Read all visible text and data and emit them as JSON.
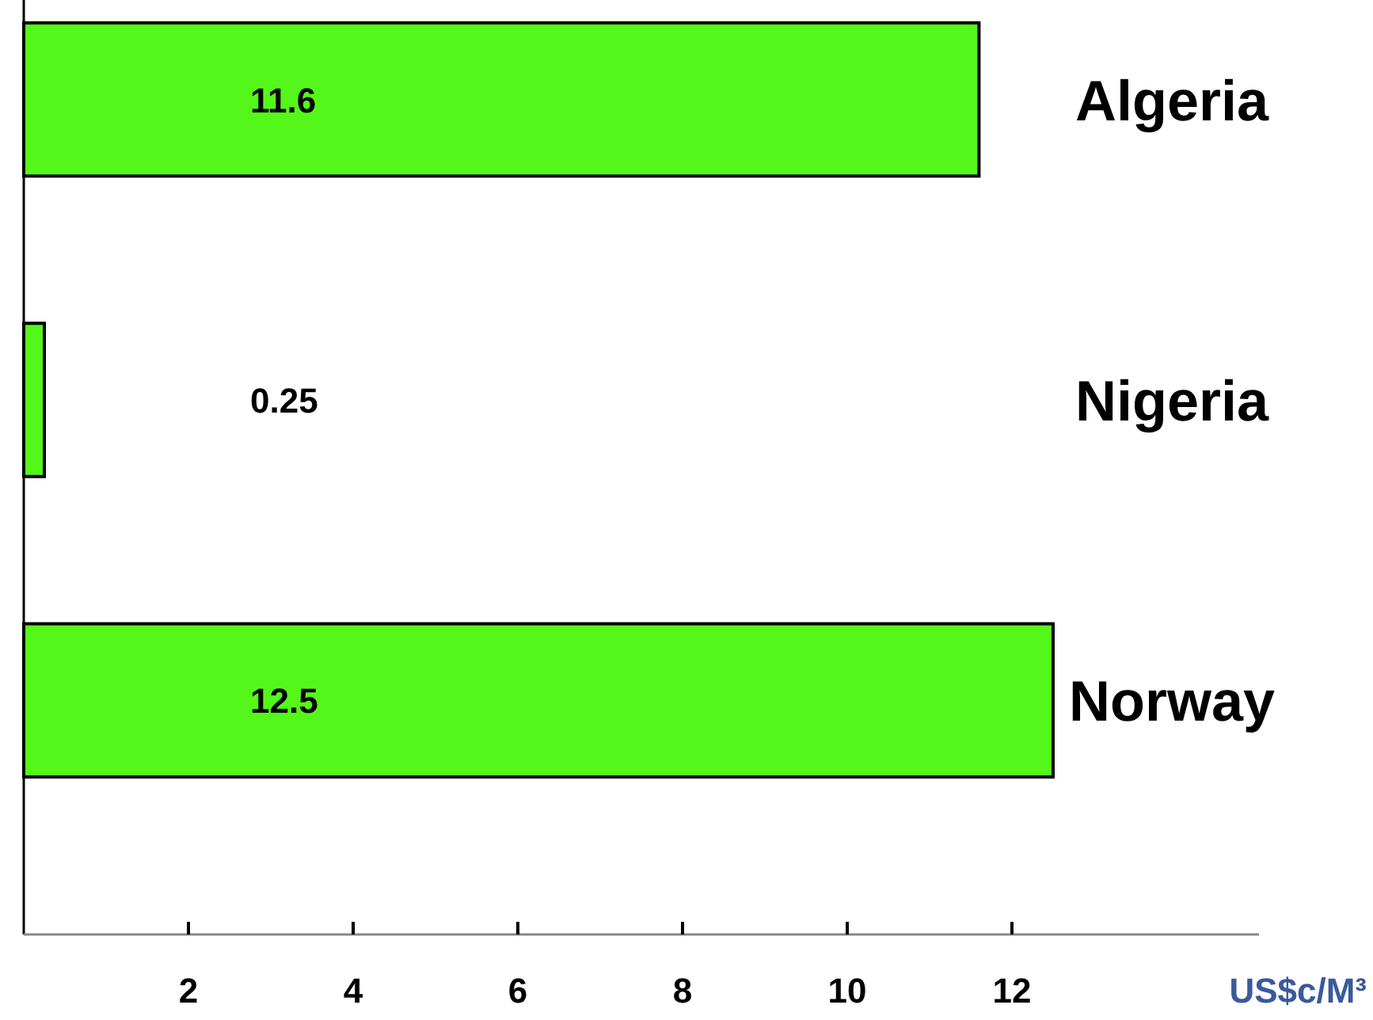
{
  "chart_data": {
    "type": "bar",
    "orientation": "horizontal",
    "categories": [
      "Algeria",
      "Nigeria",
      "Norway"
    ],
    "values": [
      11.6,
      0.25,
      12.5
    ],
    "color": "#55f71a",
    "data_labels": true,
    "xlabel": "US$c/M³",
    "xlim": [
      0,
      15
    ],
    "xticks": [
      2,
      4,
      6,
      8,
      10,
      12
    ],
    "grid": false
  }
}
